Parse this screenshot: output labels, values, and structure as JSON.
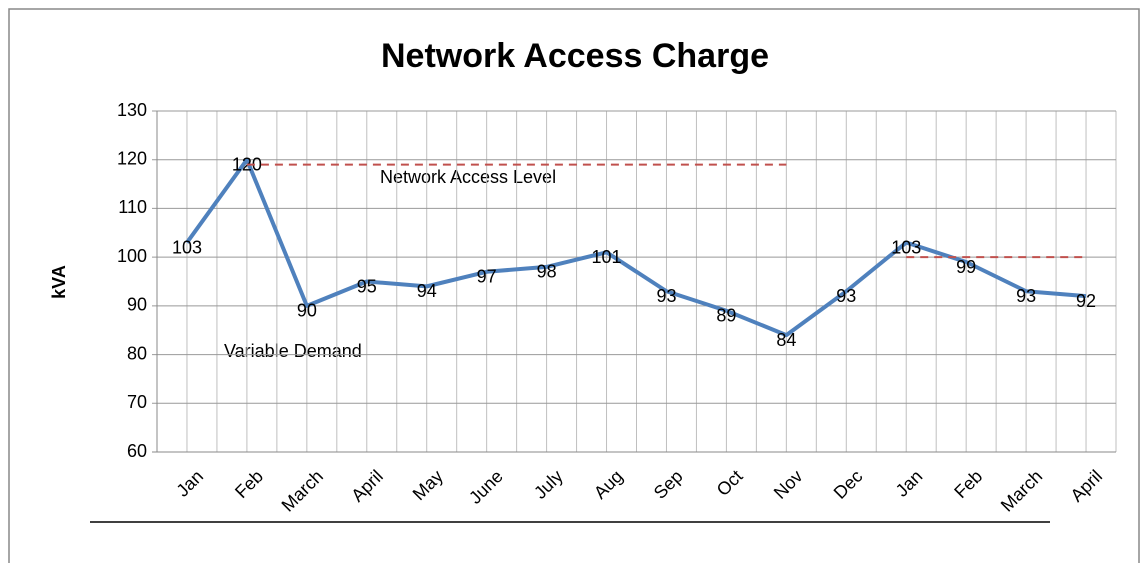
{
  "chart_data": {
    "type": "line",
    "title": "Network Access Charge",
    "y_label": "kVA",
    "categories": [
      "Jan",
      "Feb",
      "March",
      "April",
      "May",
      "June",
      "July",
      "Aug",
      "Sep",
      "Oct",
      "Nov",
      "Dec",
      "Jan",
      "Feb",
      "March",
      "April"
    ],
    "series": [
      {
        "color": "#4f81bd",
        "values": [
          103,
          120,
          90,
          95,
          94,
          97,
          98,
          101,
          93,
          89,
          84,
          93,
          103,
          99,
          93,
          92
        ],
        "data_labels": true
      },
      {
        "color": "#c0504d",
        "dashed": true,
        "values": [
          null,
          119,
          119,
          119,
          119,
          119,
          119,
          119,
          119,
          119,
          119,
          null,
          null,
          null,
          null,
          null
        ]
      },
      {
        "color": "#c0504d",
        "dashed": true,
        "values": [
          null,
          null,
          null,
          null,
          null,
          null,
          null,
          null,
          null,
          null,
          null,
          null,
          100,
          100,
          100,
          100
        ]
      }
    ],
    "annotations": [
      "Network Access  Level",
      "Variable Demand"
    ],
    "ylim": [
      60,
      130
    ],
    "yticks": [
      60,
      70,
      80,
      90,
      100,
      110,
      120,
      130
    ],
    "grid": true
  }
}
